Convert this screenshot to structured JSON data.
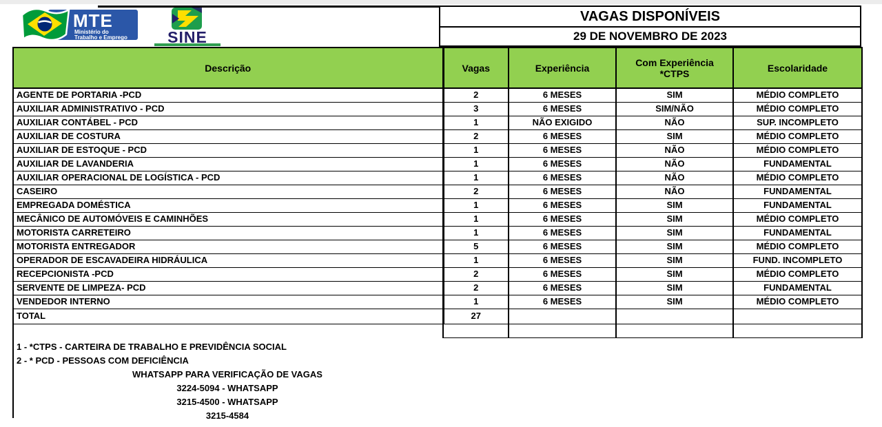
{
  "logos": {
    "mte": {
      "acronym": "MTE",
      "ministry_line1": "Ministério do",
      "ministry_line2": "Trabalho e Emprego"
    },
    "sine": {
      "name": "SINE"
    }
  },
  "header": {
    "title": "VAGAS DISPONÍVEIS",
    "date": "29 DE NOVEMBRO DE 2023"
  },
  "table": {
    "columns": [
      {
        "label": "Descrição"
      },
      {
        "label": "Vagas"
      },
      {
        "label": "Experiência"
      },
      {
        "label": "Com Experiência",
        "label2": "*CTPS"
      },
      {
        "label": "Escolaridade"
      }
    ],
    "rows": [
      {
        "descricao": "AGENTE DE PORTARIA -PCD",
        "vagas": "2",
        "experiencia": "6 MESES",
        "com_experiencia": "SIM",
        "escolaridade": "MÉDIO COMPLETO"
      },
      {
        "descricao": "AUXILIAR ADMINISTRATIVO - PCD",
        "vagas": "3",
        "experiencia": "6 MESES",
        "com_experiencia": "SIM/NÃO",
        "escolaridade": "MÉDIO COMPLETO"
      },
      {
        "descricao": "AUXILIAR CONTÁBEL - PCD",
        "vagas": "1",
        "experiencia": "NÃO EXIGIDO",
        "com_experiencia": "NÃO",
        "escolaridade": "SUP. INCOMPLETO"
      },
      {
        "descricao": "AUXILIAR DE COSTURA",
        "vagas": "2",
        "experiencia": "6 MESES",
        "com_experiencia": "SIM",
        "escolaridade": "MÉDIO COMPLETO"
      },
      {
        "descricao": "AUXILIAR DE ESTOQUE - PCD",
        "vagas": "1",
        "experiencia": "6 MESES",
        "com_experiencia": "NÃO",
        "escolaridade": "MÉDIO COMPLETO"
      },
      {
        "descricao": "AUXILIAR DE LAVANDERIA",
        "vagas": "1",
        "experiencia": "6 MESES",
        "com_experiencia": "NÃO",
        "escolaridade": "FUNDAMENTAL"
      },
      {
        "descricao": "AUXILIAR OPERACIONAL DE LOGÍSTICA - PCD",
        "vagas": "1",
        "experiencia": "6 MESES",
        "com_experiencia": "NÃO",
        "escolaridade": "MÉDIO COMPLETO"
      },
      {
        "descricao": "CASEIRO",
        "vagas": "2",
        "experiencia": "6 MESES",
        "com_experiencia": "NÃO",
        "escolaridade": "FUNDAMENTAL"
      },
      {
        "descricao": "EMPREGADA DOMÉSTICA",
        "vagas": "1",
        "experiencia": "6 MESES",
        "com_experiencia": "SIM",
        "escolaridade": "FUNDAMENTAL"
      },
      {
        "descricao": "MECÂNICO DE AUTOMÓVEIS E CAMINHÕES",
        "vagas": "1",
        "experiencia": "6 MESES",
        "com_experiencia": "SIM",
        "escolaridade": "MÉDIO COMPLETO"
      },
      {
        "descricao": "MOTORISTA CARRETEIRO",
        "vagas": "1",
        "experiencia": "6 MESES",
        "com_experiencia": "SIM",
        "escolaridade": "FUNDAMENTAL"
      },
      {
        "descricao": "MOTORISTA ENTREGADOR",
        "vagas": "5",
        "experiencia": "6 MESES",
        "com_experiencia": "SIM",
        "escolaridade": "MÉDIO COMPLETO"
      },
      {
        "descricao": "OPERADOR DE ESCAVADEIRA HIDRÁULICA",
        "vagas": "1",
        "experiencia": "6 MESES",
        "com_experiencia": "SIM",
        "escolaridade": "FUND. INCOMPLETO"
      },
      {
        "descricao": "RECEPCIONISTA -PCD",
        "vagas": "2",
        "experiencia": "6 MESES",
        "com_experiencia": "SIM",
        "escolaridade": "MÉDIO COMPLETO"
      },
      {
        "descricao": "SERVENTE DE LIMPEZA- PCD",
        "vagas": "2",
        "experiencia": "6 MESES",
        "com_experiencia": "SIM",
        "escolaridade": "FUNDAMENTAL"
      },
      {
        "descricao": "VENDEDOR INTERNO",
        "vagas": "1",
        "experiencia": "6 MESES",
        "com_experiencia": "SIM",
        "escolaridade": "MÉDIO COMPLETO"
      }
    ],
    "total_label": "TOTAL",
    "total_value": "27"
  },
  "footer": {
    "note_ctps": "1 - *CTPS - CARTEIRA DE TRABALHO E PREVIDÊNCIA SOCIAL",
    "note_pcd": "2 - * PCD - PESSOAS COM DEFICIÊNCIA",
    "whatsapp_heading": "WHATSAPP PARA VERIFICAÇÃO DE VAGAS",
    "phones": [
      "3224-5094 - WHATSAPP",
      "3215-4500 - WHATSAPP",
      "3215-4584"
    ]
  },
  "colors": {
    "header_green": "#92d050",
    "mte_blue": "#2b57a8",
    "sine_navy": "#241e69",
    "flag_green": "#009b3a",
    "flag_yellow": "#fedf00",
    "flag_blue": "#002776",
    "border_black": "#000000"
  }
}
